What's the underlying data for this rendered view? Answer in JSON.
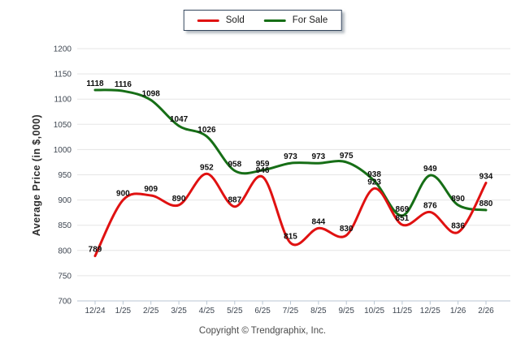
{
  "legend": {
    "items": [
      {
        "label": "Sold"
      },
      {
        "label": "For Sale"
      }
    ]
  },
  "footer": {
    "copyright": "Copyright © Trendgraphix, Inc."
  },
  "chart_data": {
    "type": "line",
    "categories": [
      "12/24",
      "1/25",
      "2/25",
      "3/25",
      "4/25",
      "5/25",
      "6/25",
      "7/25",
      "8/25",
      "9/25",
      "10/25",
      "11/25",
      "12/25",
      "1/26",
      "2/26"
    ],
    "series": [
      {
        "name": "Sold",
        "color": "#e01111",
        "values": [
          789,
          900,
          909,
          890,
          952,
          887,
          946,
          815,
          844,
          830,
          923,
          851,
          876,
          836,
          934
        ]
      },
      {
        "name": "For Sale",
        "color": "#166e16",
        "values": [
          1118,
          1116,
          1098,
          1047,
          1026,
          958,
          959,
          973,
          973,
          975,
          938,
          869,
          949,
          890,
          880
        ]
      }
    ],
    "title": "",
    "xlabel": "",
    "ylabel": "Average Price (in $,000)",
    "ylim": [
      700,
      1200
    ],
    "y_ticks": [
      700,
      750,
      800,
      850,
      900,
      950,
      1000,
      1050,
      1100,
      1150,
      1200
    ],
    "grid": true,
    "legend_position": "top-center",
    "data_labels": true,
    "smooth": true
  }
}
